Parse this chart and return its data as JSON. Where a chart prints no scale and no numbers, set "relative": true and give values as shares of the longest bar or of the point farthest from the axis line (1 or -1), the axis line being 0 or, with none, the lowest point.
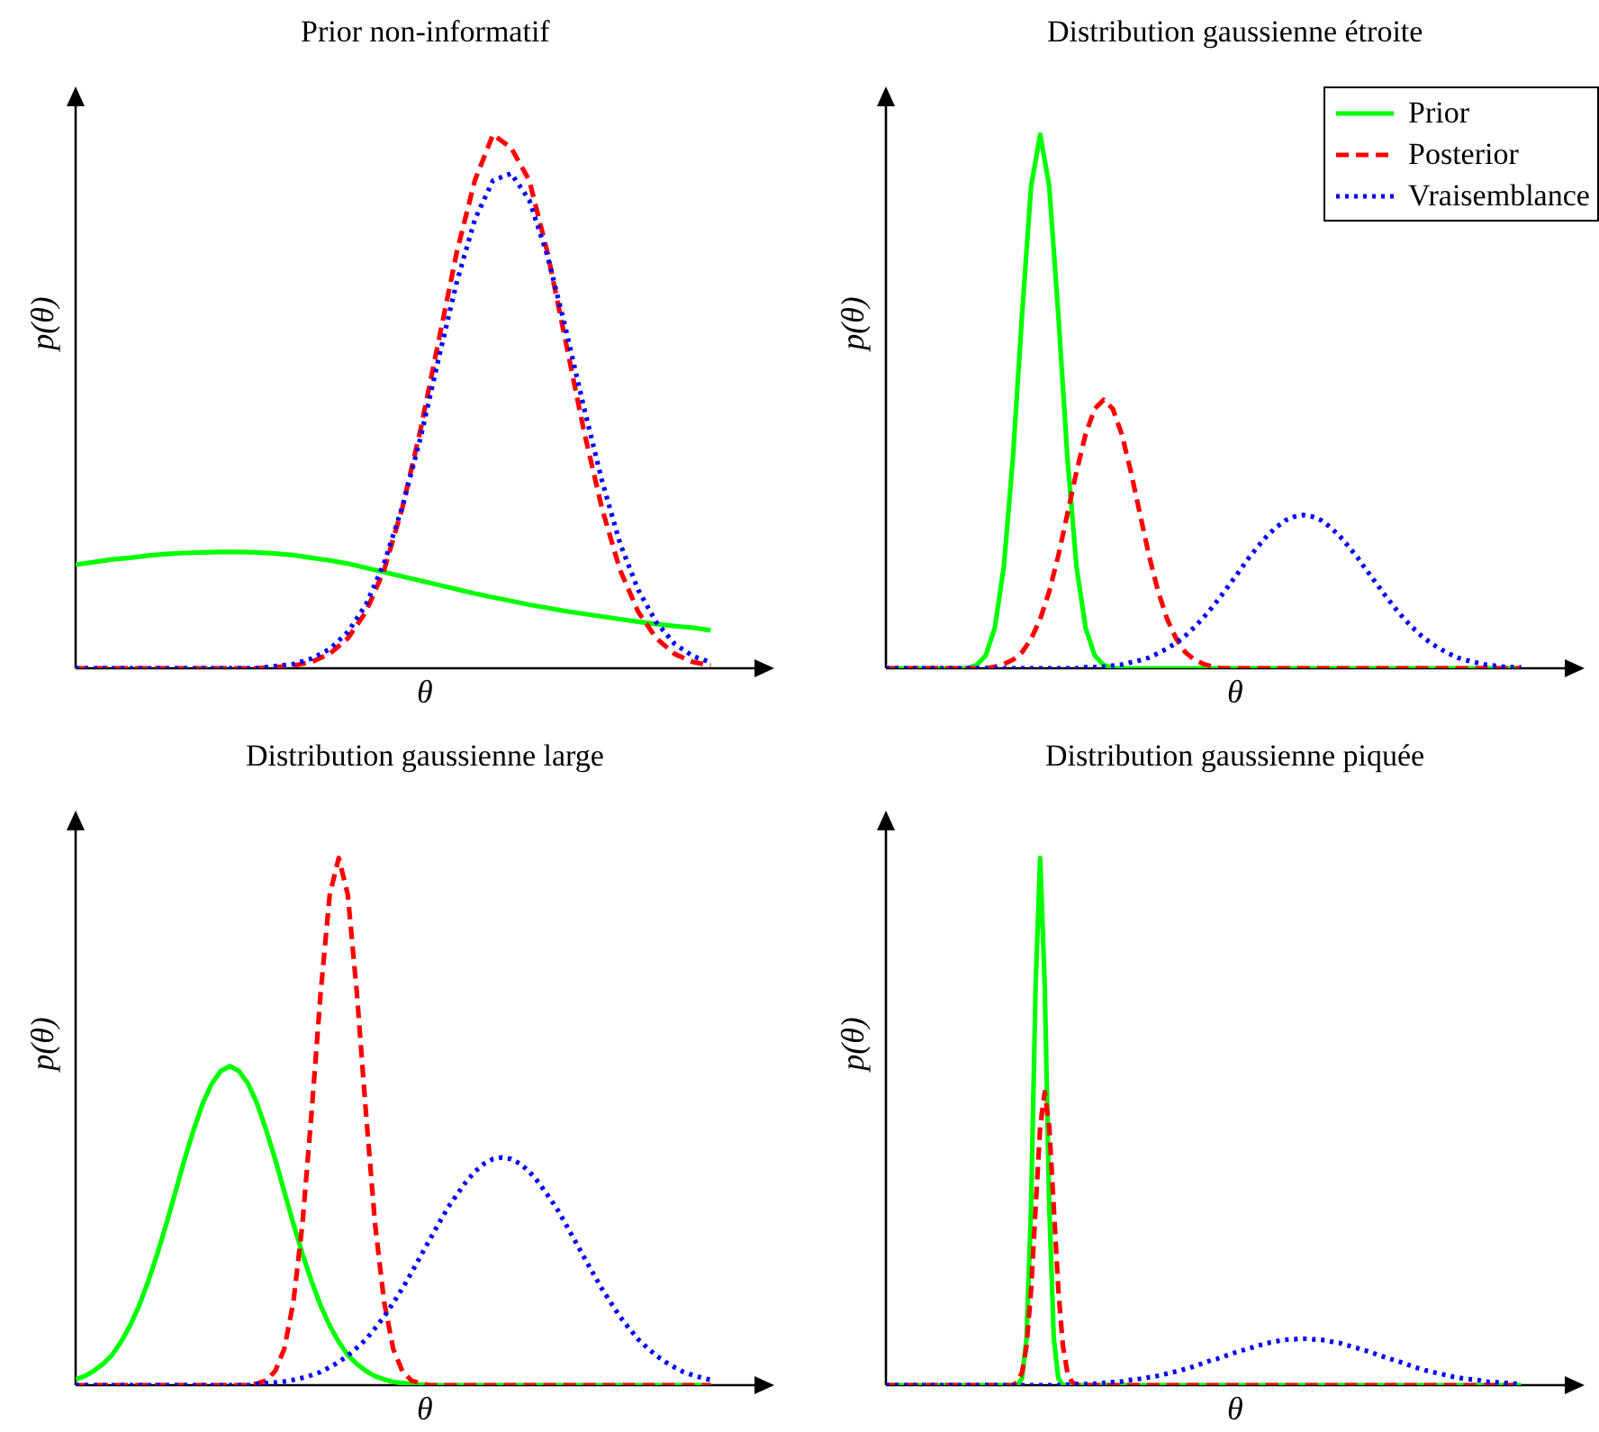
{
  "chart_data": [
    {
      "type": "line",
      "title": "Prior non-informatif",
      "xlabel": "θ",
      "ylabel": "p(θ)",
      "relative": true,
      "categories": [
        null,
        null,
        null,
        null,
        null,
        null,
        null,
        null,
        null,
        null,
        null,
        null,
        null,
        null,
        null,
        null,
        null,
        null,
        null,
        null,
        null,
        null,
        null,
        null,
        null,
        null,
        null,
        null,
        null,
        null,
        null,
        null,
        null,
        null,
        null,
        null
      ],
      "series": [
        {
          "color": "#00ff00",
          "line_style": "solid",
          "values": [
            0.194,
            0.199,
            0.204,
            0.207,
            0.211,
            0.214,
            0.216,
            0.217,
            0.218,
            0.218,
            0.217,
            0.215,
            0.212,
            0.207,
            0.202,
            0.196,
            0.188,
            0.18,
            0.172,
            0.164,
            0.156,
            0.148,
            0.14,
            0.133,
            0.126,
            0.119,
            0.113,
            0.107,
            0.102,
            0.097,
            0.092,
            0.087,
            0.083,
            0.079,
            0.076,
            0.071
          ]
        },
        {
          "color": "#ff0000",
          "line_style": "dashed",
          "values": [
            0,
            0,
            0,
            0,
            0,
            0,
            0,
            0,
            0,
            0,
            0,
            0.002,
            0.005,
            0.012,
            0.027,
            0.056,
            0.106,
            0.184,
            0.3,
            0.446,
            0.613,
            0.779,
            0.914,
            1,
            0.975,
            0.914,
            0.779,
            0.613,
            0.446,
            0.3,
            0.184,
            0.106,
            0.056,
            0.027,
            0.012,
            0.005
          ]
        },
        {
          "color": "#0000ff",
          "line_style": "dotted",
          "values": [
            0,
            0,
            0,
            0,
            0,
            0,
            0,
            0,
            0,
            0,
            0,
            0.004,
            0.008,
            0.018,
            0.036,
            0.068,
            0.119,
            0.197,
            0.302,
            0.431,
            0.58,
            0.723,
            0.841,
            0.914,
            0.927,
            0.877,
            0.773,
            0.637,
            0.49,
            0.352,
            0.234,
            0.147,
            0.086,
            0.046,
            0.023,
            0.011
          ]
        }
      ]
    },
    {
      "type": "line",
      "title": "Distribution gaussienne étroite",
      "xlabel": "θ",
      "ylabel": "p(θ)",
      "relative": true,
      "legend": "top right",
      "categories": [
        null,
        null,
        null,
        null,
        null,
        null,
        null,
        null,
        null,
        null,
        null,
        null,
        null,
        null,
        null,
        null,
        null,
        null,
        null,
        null,
        null,
        null,
        null,
        null,
        null,
        null,
        null,
        null,
        null,
        null,
        null,
        null,
        null,
        null,
        null,
        null,
        null,
        null,
        null,
        null,
        null,
        null,
        null,
        null,
        null,
        null,
        null,
        null,
        null,
        null,
        null,
        null,
        null,
        null,
        null,
        null,
        null,
        null,
        null,
        null,
        null,
        null,
        null,
        null,
        null,
        null,
        null,
        null,
        null,
        null,
        null
      ],
      "series": [
        {
          "name": "Prior",
          "color": "#00ff00",
          "line_style": "solid",
          "values": [
            0,
            0,
            0,
            0,
            0,
            0,
            0,
            0,
            0,
            0,
            0.006,
            0.024,
            0.076,
            0.191,
            0.395,
            0.662,
            0.903,
            1,
            0.903,
            0.662,
            0.395,
            0.191,
            0.076,
            0.024,
            0.006,
            0,
            0,
            0,
            0,
            0,
            0,
            0,
            0,
            0,
            0,
            0,
            0,
            0,
            0,
            0,
            0,
            0,
            0,
            0,
            0,
            0,
            0,
            0,
            0,
            0,
            0,
            0,
            0,
            0,
            0,
            0,
            0,
            0,
            0,
            0,
            0,
            0,
            0,
            0,
            0,
            0,
            0,
            0,
            0,
            0,
            0
          ]
        },
        {
          "name": "Posterior",
          "color": "#ff0000",
          "line_style": "dashed",
          "values": [
            0,
            0,
            0,
            0,
            0,
            0,
            0,
            0,
            0,
            0,
            0,
            0,
            0.003,
            0.008,
            0.016,
            0.03,
            0.055,
            0.092,
            0.144,
            0.211,
            0.289,
            0.368,
            0.438,
            0.486,
            0.503,
            0.486,
            0.438,
            0.368,
            0.289,
            0.211,
            0.144,
            0.092,
            0.055,
            0.03,
            0.016,
            0.008,
            0.003,
            0,
            0,
            0,
            0,
            0,
            0,
            0,
            0,
            0,
            0,
            0,
            0,
            0,
            0,
            0,
            0,
            0,
            0,
            0,
            0,
            0,
            0,
            0,
            0,
            0,
            0,
            0,
            0,
            0,
            0,
            0,
            0,
            0,
            0
          ]
        },
        {
          "name": "Vraisemblance",
          "color": "#0000ff",
          "line_style": "dotted",
          "values": [
            0,
            0,
            0,
            0,
            0,
            0,
            0,
            0,
            0,
            0,
            0,
            0,
            0,
            0,
            0,
            0,
            0,
            0,
            0,
            0,
            0,
            0,
            0.002,
            0.002,
            0.003,
            0.005,
            0.007,
            0.011,
            0.015,
            0.02,
            0.028,
            0.037,
            0.048,
            0.061,
            0.077,
            0.095,
            0.115,
            0.137,
            0.16,
            0.183,
            0.207,
            0.228,
            0.248,
            0.264,
            0.277,
            0.284,
            0.287,
            0.284,
            0.277,
            0.264,
            0.248,
            0.228,
            0.207,
            0.183,
            0.16,
            0.137,
            0.115,
            0.095,
            0.077,
            0.061,
            0.048,
            0.037,
            0.028,
            0.02,
            0.015,
            0.011,
            0.007,
            0.005,
            0.003,
            0.002,
            0.002
          ]
        }
      ]
    },
    {
      "type": "line",
      "title": "Distribution gaussienne large",
      "xlabel": "θ",
      "ylabel": "p(θ)",
      "relative": true,
      "categories": [
        null,
        null,
        null,
        null,
        null,
        null,
        null,
        null,
        null,
        null,
        null,
        null,
        null,
        null,
        null,
        null,
        null,
        null,
        null,
        null,
        null,
        null,
        null,
        null,
        null,
        null,
        null,
        null,
        null,
        null,
        null,
        null,
        null,
        null,
        null,
        null,
        null,
        null,
        null,
        null,
        null,
        null,
        null,
        null,
        null,
        null,
        null,
        null,
        null,
        null,
        null,
        null,
        null,
        null,
        null,
        null,
        null,
        null,
        null,
        null,
        null,
        null,
        null,
        null,
        null,
        null,
        null,
        null,
        null,
        null,
        null
      ],
      "series": [
        {
          "color": "#00ff00",
          "line_style": "solid",
          "values": [
            0.011,
            0.017,
            0.027,
            0.04,
            0.057,
            0.082,
            0.113,
            0.151,
            0.197,
            0.249,
            0.306,
            0.367,
            0.428,
            0.484,
            0.534,
            0.572,
            0.596,
            0.605,
            0.596,
            0.572,
            0.534,
            0.484,
            0.428,
            0.367,
            0.306,
            0.249,
            0.197,
            0.151,
            0.113,
            0.082,
            0.057,
            0.04,
            0.027,
            0.017,
            0.011,
            0.006,
            0.004,
            0.002,
            0.001,
            0,
            0,
            0,
            0,
            0,
            0,
            0,
            0,
            0,
            0,
            0,
            0,
            0,
            0,
            0,
            0,
            0,
            0,
            0,
            0,
            0,
            0,
            0,
            0,
            0,
            0,
            0,
            0,
            0,
            0,
            0,
            0
          ]
        },
        {
          "color": "#ff0000",
          "line_style": "dashed",
          "values": [
            0,
            0,
            0,
            0,
            0,
            0,
            0,
            0,
            0,
            0,
            0,
            0,
            0,
            0,
            0,
            0,
            0,
            0,
            0,
            0,
            0.003,
            0.009,
            0.027,
            0.069,
            0.158,
            0.306,
            0.516,
            0.743,
            0.93,
            1,
            0.93,
            0.743,
            0.516,
            0.306,
            0.158,
            0.069,
            0.027,
            0.009,
            0.003,
            0,
            0,
            0,
            0,
            0,
            0,
            0,
            0,
            0,
            0,
            0,
            0,
            0,
            0,
            0,
            0,
            0,
            0,
            0,
            0,
            0,
            0,
            0,
            0,
            0,
            0,
            0,
            0,
            0,
            0,
            0,
            0
          ]
        },
        {
          "color": "#0000ff",
          "line_style": "dotted",
          "values": [
            0,
            0,
            0,
            0,
            0,
            0,
            0,
            0,
            0,
            0,
            0,
            0,
            0,
            0,
            0,
            0,
            0,
            0,
            0,
            0,
            0.002,
            0.004,
            0.005,
            0.007,
            0.01,
            0.014,
            0.019,
            0.025,
            0.034,
            0.044,
            0.056,
            0.071,
            0.087,
            0.108,
            0.13,
            0.156,
            0.183,
            0.213,
            0.244,
            0.275,
            0.306,
            0.336,
            0.361,
            0.385,
            0.405,
            0.42,
            0.429,
            0.432,
            0.429,
            0.42,
            0.405,
            0.385,
            0.361,
            0.336,
            0.306,
            0.275,
            0.244,
            0.213,
            0.183,
            0.156,
            0.13,
            0.108,
            0.087,
            0.071,
            0.056,
            0.044,
            0.034,
            0.025,
            0.019,
            0.014,
            0.01
          ]
        }
      ]
    },
    {
      "type": "line",
      "title": "Distribution gaussienne piquée",
      "xlabel": "θ",
      "ylabel": "p(θ)",
      "relative": true,
      "categories": [
        null,
        null,
        null,
        null,
        null,
        null,
        null,
        null,
        null,
        null,
        null,
        null,
        null,
        null,
        null,
        null,
        null,
        null,
        null,
        null,
        null,
        null,
        null,
        null,
        null,
        null,
        null,
        null,
        null,
        null,
        null,
        null,
        null,
        null,
        null,
        null,
        null,
        null,
        null,
        null,
        null,
        null,
        null,
        null,
        null,
        null,
        null,
        null,
        null,
        null,
        null,
        null,
        null,
        null,
        null,
        null,
        null,
        null,
        null,
        null,
        null,
        null,
        null,
        null,
        null,
        null,
        null,
        null,
        null,
        null,
        null,
        null,
        null,
        null,
        null,
        null,
        null,
        null,
        null,
        null,
        null,
        null,
        null,
        null,
        null,
        null,
        null,
        null,
        null,
        null,
        null,
        null,
        null,
        null,
        null,
        null,
        null,
        null,
        null,
        null,
        null,
        null,
        null,
        null,
        null,
        null,
        null,
        null,
        null,
        null,
        null,
        null,
        null,
        null,
        null,
        null,
        null,
        null,
        null,
        null,
        null,
        null,
        null,
        null,
        null,
        null,
        null,
        null,
        null,
        null,
        null,
        null,
        null,
        null,
        null,
        null,
        null,
        null,
        null,
        null,
        null
      ],
      "series": [
        {
          "color": "#00ff00",
          "line_style": "solid",
          "values": [
            0,
            0,
            0,
            0,
            0,
            0,
            0,
            0,
            0,
            0,
            0,
            0,
            0,
            0,
            0,
            0,
            0,
            0,
            0,
            0,
            0,
            0,
            0,
            0,
            0,
            0,
            0,
            0,
            0,
            0,
            0.013,
            0.089,
            0.34,
            0.76,
            1,
            0.76,
            0.34,
            0.089,
            0.013,
            0,
            0,
            0,
            0,
            0,
            0,
            0,
            0,
            0,
            0,
            0,
            0,
            0,
            0,
            0,
            0,
            0,
            0,
            0,
            0,
            0,
            0,
            0,
            0,
            0,
            0,
            0,
            0,
            0,
            0,
            0,
            0,
            0,
            0,
            0,
            0,
            0,
            0,
            0,
            0,
            0,
            0,
            0,
            0,
            0,
            0,
            0,
            0,
            0,
            0,
            0,
            0,
            0,
            0,
            0,
            0,
            0,
            0,
            0,
            0,
            0,
            0,
            0,
            0,
            0,
            0,
            0,
            0,
            0,
            0,
            0,
            0,
            0,
            0,
            0,
            0,
            0,
            0,
            0,
            0,
            0,
            0,
            0,
            0,
            0,
            0,
            0,
            0,
            0,
            0,
            0,
            0,
            0,
            0,
            0,
            0,
            0,
            0,
            0,
            0,
            0,
            0
          ]
        },
        {
          "color": "#ff0000",
          "line_style": "dashed",
          "values": [
            0,
            0,
            0,
            0,
            0,
            0,
            0,
            0,
            0,
            0,
            0,
            0,
            0,
            0,
            0,
            0,
            0,
            0,
            0,
            0,
            0,
            0,
            0,
            0,
            0,
            0,
            0,
            0,
            0,
            0.006,
            0.024,
            0.075,
            0.181,
            0.337,
            0.49,
            0.556,
            0.49,
            0.337,
            0.181,
            0.075,
            0.024,
            0.006,
            0,
            0,
            0,
            0,
            0,
            0,
            0,
            0,
            0,
            0,
            0,
            0,
            0,
            0,
            0,
            0,
            0,
            0,
            0,
            0,
            0,
            0,
            0,
            0,
            0,
            0,
            0,
            0,
            0,
            0,
            0,
            0,
            0,
            0,
            0,
            0,
            0,
            0,
            0,
            0,
            0,
            0,
            0,
            0,
            0,
            0,
            0,
            0,
            0,
            0,
            0,
            0,
            0,
            0,
            0,
            0,
            0,
            0,
            0,
            0,
            0,
            0,
            0,
            0,
            0,
            0,
            0,
            0,
            0,
            0,
            0,
            0,
            0,
            0,
            0,
            0,
            0,
            0,
            0,
            0,
            0,
            0,
            0,
            0,
            0,
            0,
            0,
            0,
            0,
            0,
            0,
            0,
            0,
            0,
            0,
            0,
            0,
            0,
            0
          ]
        },
        {
          "color": "#0000ff",
          "line_style": "dotted",
          "values": [
            0,
            0,
            0,
            0,
            0,
            0,
            0,
            0,
            0,
            0,
            0,
            0,
            0,
            0,
            0,
            0,
            0,
            0,
            0,
            0,
            0,
            0,
            0,
            0,
            0,
            0,
            0,
            0,
            0,
            0,
            0,
            0,
            0,
            0,
            0,
            0,
            0,
            0,
            0,
            0,
            0.001,
            0.001,
            0.002,
            0.002,
            0.002,
            0.003,
            0.003,
            0.004,
            0.004,
            0.005,
            0.006,
            0.006,
            0.007,
            0.009,
            0.01,
            0.011,
            0.012,
            0.013,
            0.015,
            0.016,
            0.018,
            0.02,
            0.022,
            0.024,
            0.026,
            0.028,
            0.031,
            0.033,
            0.036,
            0.039,
            0.042,
            0.045,
            0.048,
            0.05,
            0.053,
            0.056,
            0.059,
            0.062,
            0.065,
            0.067,
            0.07,
            0.072,
            0.075,
            0.077,
            0.08,
            0.081,
            0.083,
            0.085,
            0.086,
            0.087,
            0.087,
            0.088,
            0.088,
            0.088,
            0.087,
            0.087,
            0.086,
            0.085,
            0.083,
            0.081,
            0.08,
            0.077,
            0.075,
            0.072,
            0.07,
            0.067,
            0.065,
            0.062,
            0.059,
            0.056,
            0.053,
            0.05,
            0.048,
            0.045,
            0.042,
            0.039,
            0.036,
            0.033,
            0.031,
            0.028,
            0.026,
            0.024,
            0.022,
            0.02,
            0.018,
            0.016,
            0.015,
            0.013,
            0.012,
            0.011,
            0.01,
            0.009,
            0.007,
            0.006,
            0.006,
            0.005,
            0.004,
            0.004,
            0.003,
            0.003,
            0.002
          ]
        }
      ]
    }
  ]
}
